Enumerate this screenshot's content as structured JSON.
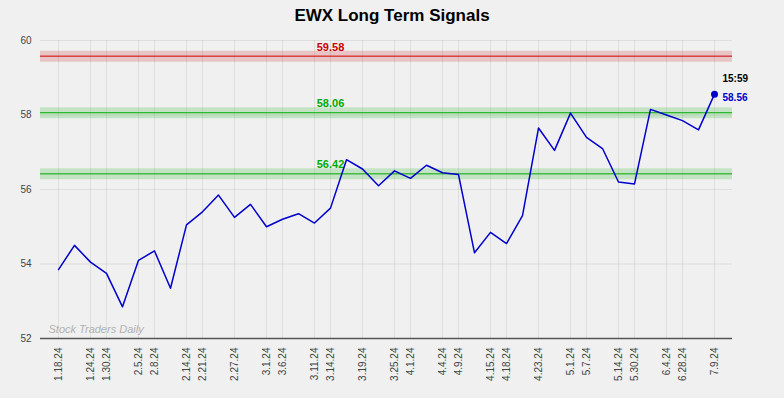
{
  "chart_data": {
    "type": "line",
    "title": "EWX Long Term Signals",
    "categories": [
      "1.18.24",
      null,
      "1.24.24",
      "1.30.24",
      null,
      "2.5.24",
      "2.8.24",
      null,
      "2.14.24",
      "2.21.24",
      null,
      "2.27.24",
      null,
      "3.1.24",
      "3.6.24",
      null,
      "3.11.24",
      "3.14.24",
      null,
      "3.19.24",
      null,
      "3.25.24",
      "4.1.24",
      null,
      "4.4.24",
      "4.9.24",
      null,
      "4.15.24",
      "4.18.24",
      null,
      "4.23.24",
      null,
      "5.1.24",
      "5.7.24",
      null,
      "5.14.24",
      "5.30.24",
      null,
      "6.4.24",
      "6.28.24",
      null,
      "7.9.24"
    ],
    "values": [
      53.85,
      54.5,
      54.05,
      53.75,
      52.85,
      54.1,
      54.35,
      53.35,
      55.05,
      55.4,
      55.85,
      55.25,
      55.6,
      55.0,
      55.2,
      55.35,
      55.1,
      55.5,
      56.8,
      56.55,
      56.1,
      56.5,
      56.3,
      56.65,
      56.45,
      56.4,
      54.3,
      54.85,
      54.55,
      55.3,
      57.65,
      57.05,
      58.05,
      57.4,
      57.1,
      56.2,
      56.15,
      58.15,
      58.0,
      57.85,
      57.6,
      58.56
    ],
    "color": "#0000cc",
    "hlines": [
      {
        "value": 59.58,
        "color": "#cc0000"
      },
      {
        "value": 58.06,
        "color": "#00aa00"
      },
      {
        "value": 56.42,
        "color": "#00aa00"
      }
    ],
    "end_labels": [
      "15:59",
      "58.56"
    ],
    "watermark": "Stock Traders Daily",
    "ylim": [
      52,
      60
    ],
    "yticks": [
      52,
      54,
      56,
      58,
      60
    ],
    "grid": true
  }
}
